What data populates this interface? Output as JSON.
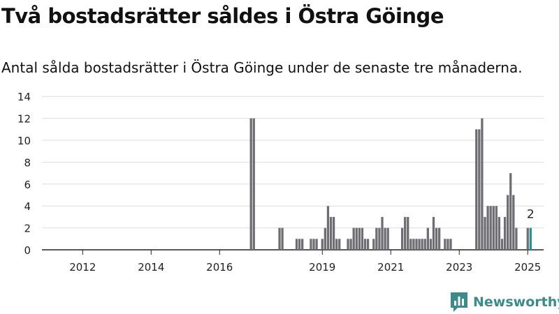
{
  "header": {
    "title": "Två bostadsrätter såldes i Östra Göinge",
    "subtitle": "Antal sålda bostadsrätter i Östra Göinge under de senaste tre månaderna."
  },
  "brand": {
    "name": "Newsworthy",
    "color": "#3d8a8a"
  },
  "colors": {
    "bar": "#6e6d72",
    "highlight": "#23948f",
    "grid": "#dddddd",
    "axis": "#222222"
  },
  "chart_data": {
    "type": "bar",
    "x_unit": "month",
    "ylim": [
      0,
      14
    ],
    "y_ticks": [
      "0",
      "2",
      "4",
      "6",
      "8",
      "10",
      "12",
      "14"
    ],
    "x_ticks": [
      "2012",
      "2014",
      "2016",
      "2019",
      "2021",
      "2023",
      "2025"
    ],
    "grid": true,
    "highlight_label": "2",
    "points": [
      {
        "x": "2016-12",
        "y": 12
      },
      {
        "x": "2017-01",
        "y": 12
      },
      {
        "x": "2017-10",
        "y": 2
      },
      {
        "x": "2017-11",
        "y": 2
      },
      {
        "x": "2018-04",
        "y": 1
      },
      {
        "x": "2018-05",
        "y": 1
      },
      {
        "x": "2018-06",
        "y": 1
      },
      {
        "x": "2018-09",
        "y": 1
      },
      {
        "x": "2018-10",
        "y": 1
      },
      {
        "x": "2018-11",
        "y": 1
      },
      {
        "x": "2019-01",
        "y": 1
      },
      {
        "x": "2019-02",
        "y": 2
      },
      {
        "x": "2019-03",
        "y": 4
      },
      {
        "x": "2019-04",
        "y": 3
      },
      {
        "x": "2019-05",
        "y": 3
      },
      {
        "x": "2019-06",
        "y": 1
      },
      {
        "x": "2019-07",
        "y": 1
      },
      {
        "x": "2019-10",
        "y": 1
      },
      {
        "x": "2019-11",
        "y": 1
      },
      {
        "x": "2019-12",
        "y": 2
      },
      {
        "x": "2020-01",
        "y": 2
      },
      {
        "x": "2020-02",
        "y": 2
      },
      {
        "x": "2020-03",
        "y": 2
      },
      {
        "x": "2020-04",
        "y": 1
      },
      {
        "x": "2020-05",
        "y": 1
      },
      {
        "x": "2020-07",
        "y": 1
      },
      {
        "x": "2020-08",
        "y": 2
      },
      {
        "x": "2020-09",
        "y": 2
      },
      {
        "x": "2020-10",
        "y": 3
      },
      {
        "x": "2020-11",
        "y": 2
      },
      {
        "x": "2020-12",
        "y": 2
      },
      {
        "x": "2021-05",
        "y": 2
      },
      {
        "x": "2021-06",
        "y": 3
      },
      {
        "x": "2021-07",
        "y": 3
      },
      {
        "x": "2021-08",
        "y": 1
      },
      {
        "x": "2021-09",
        "y": 1
      },
      {
        "x": "2021-10",
        "y": 1
      },
      {
        "x": "2021-11",
        "y": 1
      },
      {
        "x": "2021-12",
        "y": 1
      },
      {
        "x": "2022-01",
        "y": 1
      },
      {
        "x": "2022-02",
        "y": 2
      },
      {
        "x": "2022-03",
        "y": 1
      },
      {
        "x": "2022-04",
        "y": 3
      },
      {
        "x": "2022-05",
        "y": 2
      },
      {
        "x": "2022-06",
        "y": 2
      },
      {
        "x": "2022-08",
        "y": 1
      },
      {
        "x": "2022-09",
        "y": 1
      },
      {
        "x": "2022-10",
        "y": 1
      },
      {
        "x": "2023-07",
        "y": 11
      },
      {
        "x": "2023-08",
        "y": 11
      },
      {
        "x": "2023-09",
        "y": 12
      },
      {
        "x": "2023-10",
        "y": 3
      },
      {
        "x": "2023-11",
        "y": 4
      },
      {
        "x": "2023-12",
        "y": 4
      },
      {
        "x": "2024-01",
        "y": 4
      },
      {
        "x": "2024-02",
        "y": 4
      },
      {
        "x": "2024-03",
        "y": 3
      },
      {
        "x": "2024-04",
        "y": 1
      },
      {
        "x": "2024-05",
        "y": 3
      },
      {
        "x": "2024-06",
        "y": 5
      },
      {
        "x": "2024-07",
        "y": 7
      },
      {
        "x": "2024-08",
        "y": 5
      },
      {
        "x": "2024-09",
        "y": 2
      },
      {
        "x": "2025-01",
        "y": 2
      },
      {
        "x": "2025-02",
        "y": 2,
        "highlight": true
      }
    ]
  }
}
